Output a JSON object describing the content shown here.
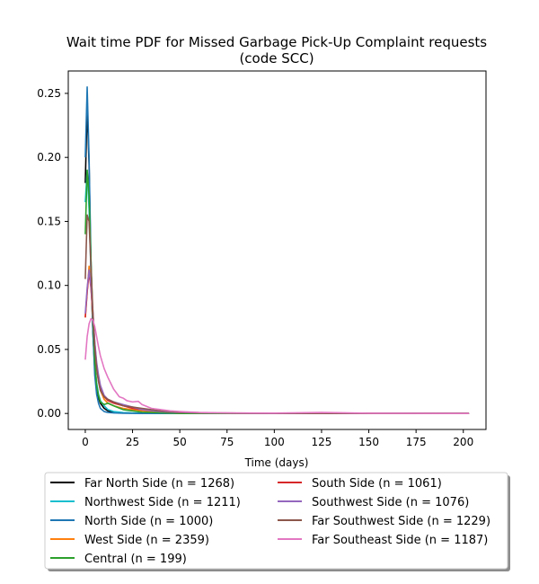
{
  "chart_data": {
    "type": "line",
    "title": "Wait time PDF for Missed Garbage Pick-Up Complaint  requests",
    "subtitle": "(code SCC)",
    "xlabel": "Time (days)",
    "ylabel": "",
    "xlim": [
      -9,
      212
    ],
    "ylim": [
      -0.0125,
      0.2675
    ],
    "xticks": [
      0,
      25,
      50,
      75,
      100,
      125,
      150,
      175,
      200
    ],
    "yticks": [
      0.0,
      0.05,
      0.1,
      0.15,
      0.2,
      0.25
    ],
    "ytick_labels": [
      "0.00",
      "0.05",
      "0.10",
      "0.15",
      "0.20",
      "0.25"
    ],
    "grid": false,
    "legend_placement": "bottom",
    "series": [
      {
        "name": "Far North Side (n = 1268)",
        "color": "#000000",
        "x": [
          0,
          1,
          2,
          3,
          4,
          5,
          6,
          7,
          8,
          10,
          12,
          15,
          20,
          25,
          30,
          40,
          50,
          70,
          100,
          130,
          160,
          203
        ],
        "y": [
          0.18,
          0.24,
          0.195,
          0.11,
          0.065,
          0.035,
          0.02,
          0.012,
          0.008,
          0.004,
          0.002,
          0.001,
          0.0005,
          0.0003,
          0.0002,
          0.0001,
          0,
          0,
          0,
          0,
          0,
          0
        ]
      },
      {
        "name": "Northwest Side (n = 1211)",
        "color": "#17becf",
        "x": [
          0,
          1,
          2,
          3,
          4,
          5,
          6,
          7,
          8,
          10,
          12,
          15,
          20,
          25,
          30,
          40,
          50,
          70,
          100,
          130,
          160,
          203
        ],
        "y": [
          0.165,
          0.19,
          0.16,
          0.11,
          0.07,
          0.04,
          0.024,
          0.015,
          0.01,
          0.006,
          0.003,
          0.0015,
          0.0007,
          0.0004,
          0.0002,
          0.0001,
          0,
          0,
          0,
          0,
          0,
          0
        ]
      },
      {
        "name": "North Side (n = 1000)",
        "color": "#1f77b4",
        "x": [
          0,
          1,
          2,
          3,
          4,
          5,
          6,
          7,
          8,
          10,
          12,
          15,
          20,
          25,
          30,
          40,
          50,
          70,
          100,
          130,
          160,
          203
        ],
        "y": [
          0.2,
          0.255,
          0.2,
          0.12,
          0.065,
          0.03,
          0.015,
          0.008,
          0.004,
          0.0015,
          0.0008,
          0.0004,
          0.0002,
          0.0001,
          0,
          0,
          0,
          0,
          0,
          0,
          0,
          0
        ]
      },
      {
        "name": "West Side (n = 2359)",
        "color": "#ff7f0e",
        "x": [
          0,
          1,
          2,
          3,
          4,
          5,
          6,
          7,
          8,
          10,
          12,
          15,
          20,
          25,
          30,
          40,
          50,
          70,
          100,
          130,
          160,
          203
        ],
        "y": [
          0.075,
          0.095,
          0.115,
          0.1,
          0.075,
          0.05,
          0.035,
          0.025,
          0.018,
          0.011,
          0.008,
          0.006,
          0.004,
          0.003,
          0.002,
          0.001,
          0.0005,
          0.0002,
          0.0001,
          0.0001,
          0,
          0
        ]
      },
      {
        "name": "Central (n = 199)",
        "color": "#2ca02c",
        "x": [
          0,
          1,
          2,
          3,
          4,
          5,
          6,
          7,
          8,
          10,
          12,
          15,
          20,
          25,
          30,
          40,
          50,
          70,
          100,
          130,
          160,
          203
        ],
        "y": [
          0.14,
          0.19,
          0.17,
          0.12,
          0.075,
          0.04,
          0.022,
          0.014,
          0.009,
          0.007,
          0.008,
          0.006,
          0.003,
          0.002,
          0.001,
          0.0005,
          0,
          0,
          0,
          0,
          0,
          0
        ]
      },
      {
        "name": "South Side (n = 1061)",
        "color": "#d62728",
        "x": [
          0,
          1,
          2,
          3,
          4,
          5,
          6,
          7,
          8,
          10,
          12,
          15,
          20,
          25,
          30,
          40,
          50,
          70,
          100,
          130,
          160,
          203
        ],
        "y": [
          0.075,
          0.095,
          0.11,
          0.098,
          0.078,
          0.055,
          0.038,
          0.028,
          0.02,
          0.013,
          0.01,
          0.008,
          0.006,
          0.004,
          0.003,
          0.0015,
          0.0008,
          0.0003,
          0.0001,
          0.0001,
          0,
          0
        ]
      },
      {
        "name": "Southwest Side (n = 1076)",
        "color": "#9467bd",
        "x": [
          0,
          1,
          2,
          3,
          4,
          5,
          6,
          7,
          8,
          10,
          12,
          15,
          20,
          25,
          30,
          40,
          50,
          70,
          100,
          130,
          160,
          203
        ],
        "y": [
          0.078,
          0.098,
          0.112,
          0.1,
          0.08,
          0.056,
          0.04,
          0.03,
          0.022,
          0.014,
          0.011,
          0.009,
          0.007,
          0.005,
          0.003,
          0.0015,
          0.0008,
          0.0003,
          0.0001,
          0.0001,
          0,
          0
        ]
      },
      {
        "name": "Far Southwest Side (n = 1229)",
        "color": "#8c564b",
        "x": [
          0,
          1,
          2,
          3,
          4,
          5,
          6,
          7,
          8,
          10,
          12,
          15,
          20,
          25,
          30,
          40,
          50,
          70,
          100,
          130,
          160,
          203
        ],
        "y": [
          0.105,
          0.155,
          0.15,
          0.115,
          0.08,
          0.052,
          0.035,
          0.025,
          0.018,
          0.013,
          0.011,
          0.009,
          0.006,
          0.005,
          0.004,
          0.002,
          0.001,
          0.0004,
          0.0002,
          0.0001,
          0,
          0
        ]
      },
      {
        "name": "Far Southeast Side (n = 1187)",
        "color": "#e377c2",
        "x": [
          0,
          1,
          2,
          3,
          4,
          5,
          6,
          7,
          8,
          10,
          12,
          15,
          18,
          20,
          22,
          25,
          28,
          30,
          35,
          40,
          45,
          50,
          60,
          70,
          80,
          100,
          125,
          150,
          175,
          203
        ],
        "y": [
          0.042,
          0.06,
          0.07,
          0.074,
          0.073,
          0.068,
          0.06,
          0.052,
          0.045,
          0.035,
          0.028,
          0.019,
          0.013,
          0.012,
          0.01,
          0.009,
          0.0095,
          0.007,
          0.004,
          0.003,
          0.002,
          0.0015,
          0.0008,
          0.0005,
          0.0004,
          0.0003,
          0.0008,
          0.0002,
          0.0001,
          0
        ]
      }
    ]
  }
}
